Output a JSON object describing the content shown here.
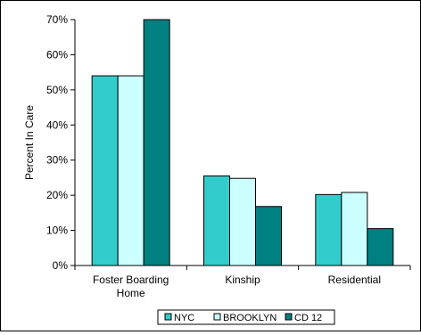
{
  "chart_data": {
    "type": "bar",
    "categories": [
      "Foster Boarding Home",
      "Kinship",
      "Residential"
    ],
    "series": [
      {
        "name": "NYC",
        "values": [
          54,
          25.5,
          20.2
        ],
        "color": "#33CCCC"
      },
      {
        "name": "BROOKLYN",
        "values": [
          54,
          24.8,
          20.8
        ],
        "color": "#CCFFFF"
      },
      {
        "name": "CD 12",
        "values": [
          70,
          16.8,
          10.5
        ],
        "color": "#008080"
      }
    ],
    "ylabel": "Percent In Care",
    "ylim": [
      0,
      70
    ],
    "yticks": [
      "0%",
      "10%",
      "20%",
      "30%",
      "40%",
      "50%",
      "60%",
      "70%"
    ],
    "grid": false,
    "legend": "bottom"
  }
}
